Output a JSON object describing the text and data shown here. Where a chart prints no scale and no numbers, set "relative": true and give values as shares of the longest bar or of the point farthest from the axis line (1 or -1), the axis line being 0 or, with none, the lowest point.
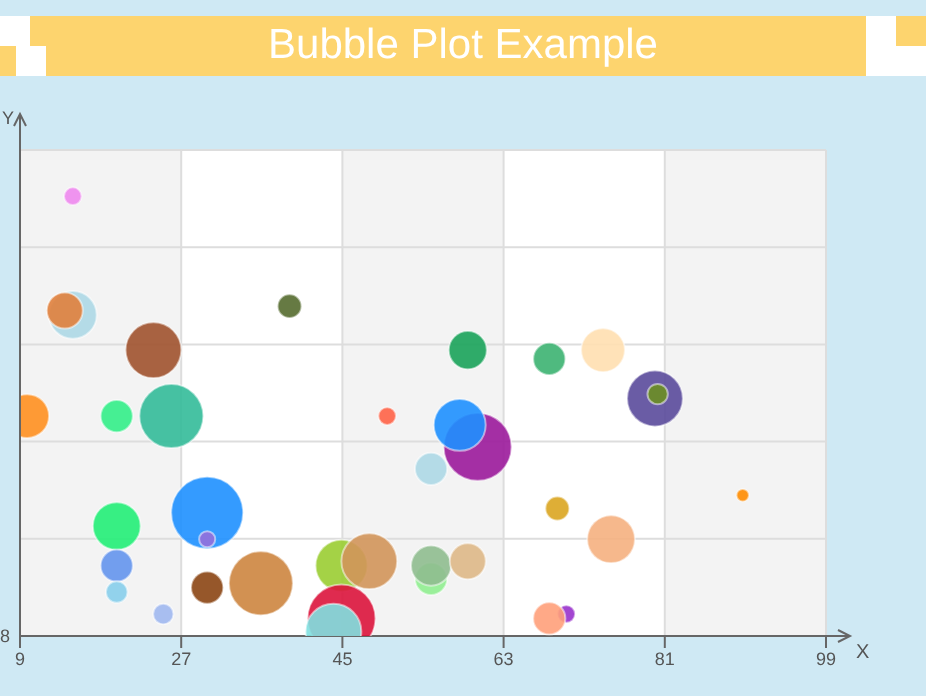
{
  "chart_data": {
    "type": "bubble",
    "title": "Bubble Plot Example",
    "xlabel": "X",
    "ylabel": "Y",
    "relative": true,
    "annotations": [
      "8"
    ],
    "xlim": [
      9,
      99
    ],
    "xticks": [
      9,
      27,
      45,
      63,
      81,
      99
    ],
    "grid": true,
    "x": [
      14.9,
      14.9,
      14,
      23.9,
      39.1,
      9.8,
      19.8,
      25.9,
      50,
      29.9,
      29.9,
      19.8,
      19.8,
      19.8,
      25,
      29.9,
      35.9,
      44.9,
      48,
      44.9,
      44,
      54.9,
      54.9,
      59,
      54.9,
      59,
      68.1,
      74.1,
      79.9,
      80.2,
      60.1,
      58.1,
      69,
      89.7,
      75,
      70,
      68.1
    ],
    "values": [
      1,
      0.73,
      0.74,
      0.65,
      0.75,
      0.5,
      0.5,
      0.5,
      0.5,
      0.28,
      0.22,
      0.25,
      0.16,
      0.1,
      0.05,
      0.11,
      0.12,
      0.16,
      0.17,
      0.04,
      0.01,
      0.13,
      0.16,
      0.17,
      0.38,
      0.65,
      0.63,
      0.65,
      0.54,
      0.55,
      0.43,
      0.48,
      0.29,
      0.32,
      0.22,
      0.05,
      0.04
    ],
    "sizes": [
      0.06,
      0.44,
      0.25,
      0.6,
      0.11,
      0.37,
      0.2,
      0.79,
      0.06,
      1,
      0.05,
      0.44,
      0.2,
      0.09,
      0.08,
      0.2,
      0.79,
      0.52,
      0.6,
      0.89,
      0.6,
      0.2,
      0.31,
      0.25,
      0.2,
      0.28,
      0.2,
      0.37,
      0.6,
      0.08,
      0.89,
      0.52,
      0.11,
      0.03,
      0.44,
      0.06,
      0.2
    ],
    "colors": [
      "#ee88ee",
      "#add8e6",
      "#e0803c",
      "#a0522d",
      "#556b2f",
      "#ff9020",
      "#33ee88",
      "#33bb99",
      "#ff6347",
      "#1e90ff",
      "#9370db",
      "#22ee77",
      "#6495ed",
      "#87ceeb",
      "#a0b8f0",
      "#8b4513",
      "#cd853f",
      "#9acd32",
      "#d2955a",
      "#dc143c",
      "#80e0e0",
      "#90ee90",
      "#8fbc8f",
      "#deb887",
      "#add8e6",
      "#1aa35a",
      "#3cb371",
      "#ffdfb0",
      "#5a4a9b",
      "#6b8e23",
      "#9b1a9b",
      "#1e90ff",
      "#daa520",
      "#ff8c00",
      "#f5b080",
      "#9932cc",
      "#ffa07a"
    ]
  }
}
